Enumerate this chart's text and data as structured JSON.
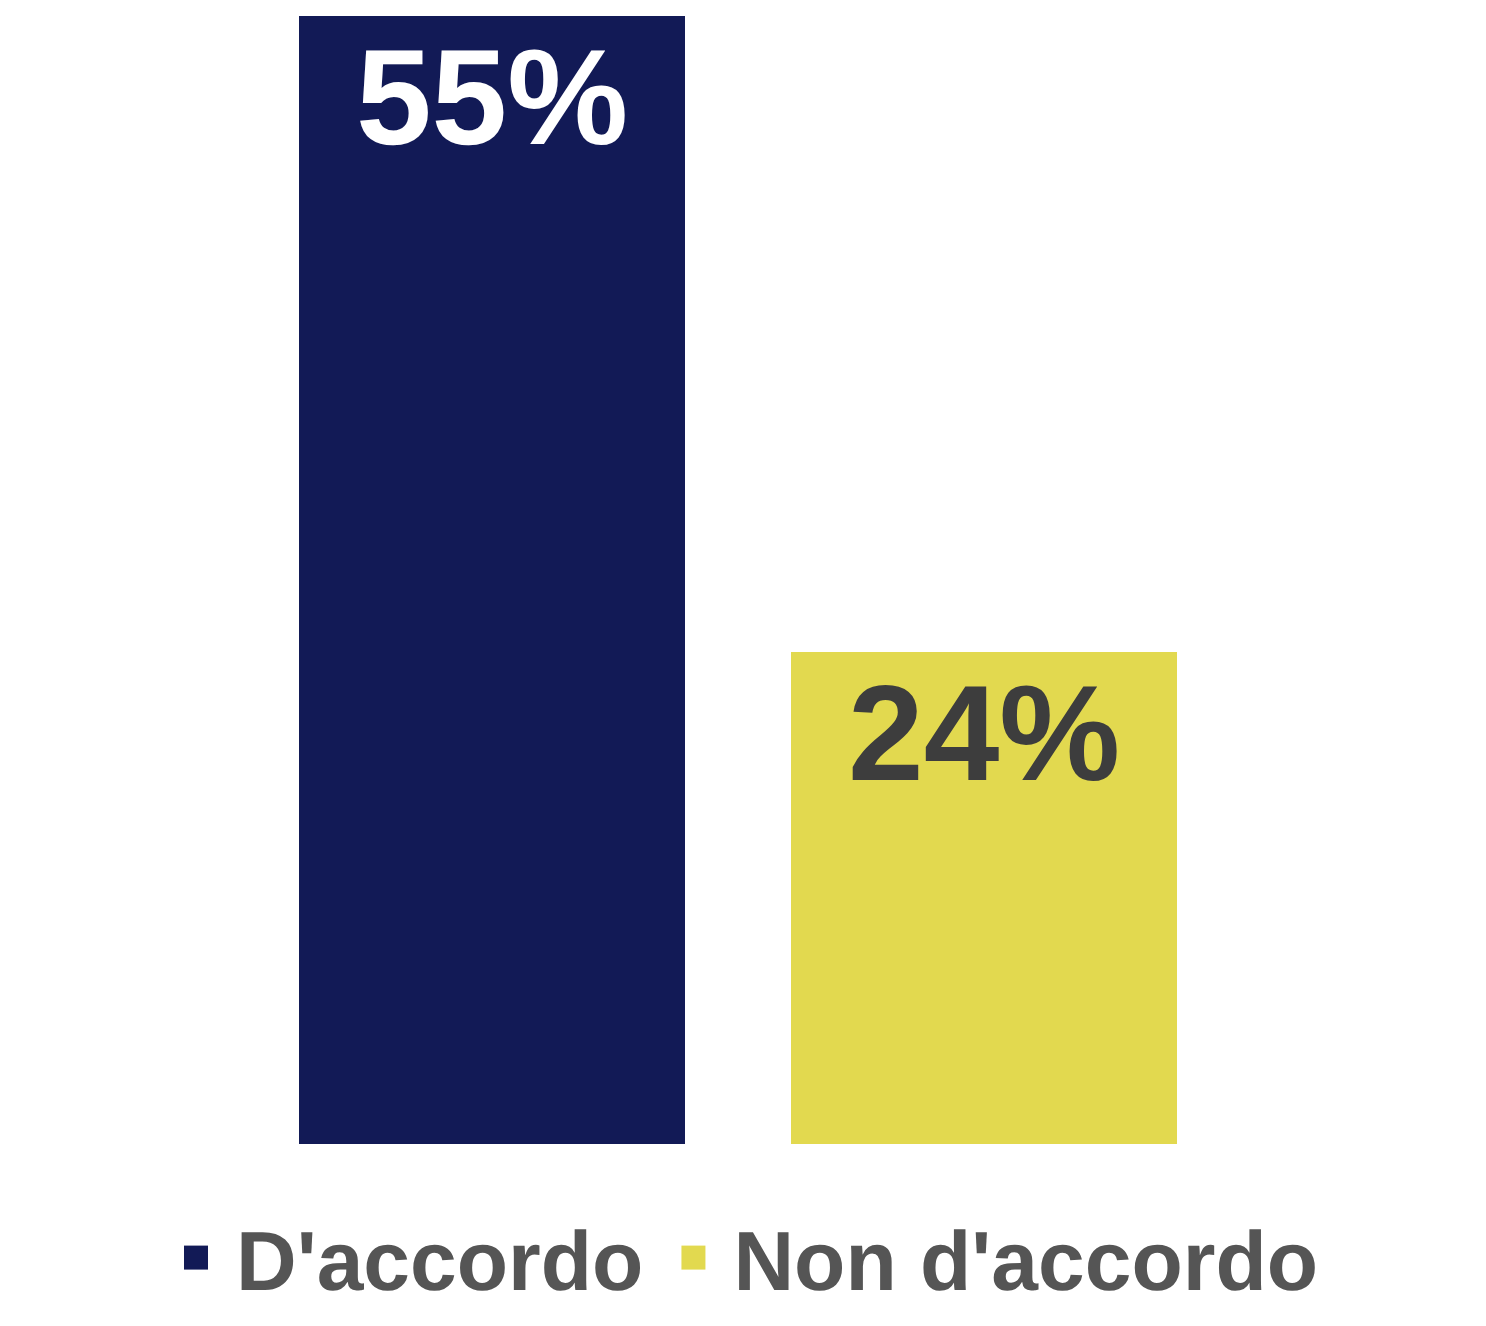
{
  "chart_data": {
    "type": "bar",
    "categories": [
      null,
      null
    ],
    "stacked": true,
    "series": [
      {
        "name": "D'accordo",
        "color": "#121a56",
        "values": [
          55,
          null
        ],
        "value_labels": [
          "55%",
          null
        ]
      },
      {
        "name": "Non d'accordo",
        "color": "#e2d94f",
        "values": [
          null,
          24
        ],
        "value_labels": [
          null,
          "24%"
        ]
      }
    ],
    "legend": "bottom"
  }
}
